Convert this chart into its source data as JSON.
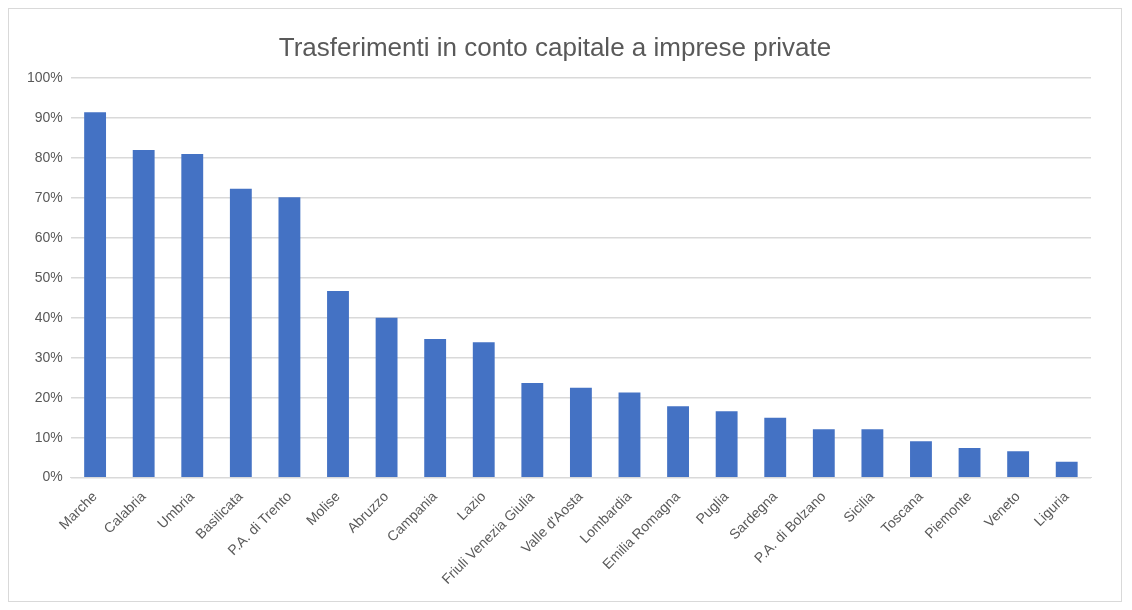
{
  "chart_data": {
    "type": "bar",
    "title": "Trasferimenti in conto capitale a imprese private",
    "categories": [
      "Marche",
      "Calabria",
      "Umbria",
      "Basilicata",
      "P.A. di Trento",
      "Molise",
      "Abruzzo",
      "Campania",
      "Lazio",
      "Friuli Venezia Giulia",
      "Valle d'Aosta",
      "Lombardia",
      "Emilia Romagna",
      "Puglia",
      "Sardegna",
      "P.A. di Bolzano",
      "Sicilia",
      "Toscana",
      "Piemonte",
      "Veneto",
      "Liguria"
    ],
    "values": [
      91.5,
      82,
      81,
      72.3,
      70.2,
      46.7,
      40,
      34.7,
      33.9,
      23.7,
      22.5,
      21.3,
      17.9,
      16.6,
      15,
      12.1,
      12.1,
      9.1,
      7.4,
      6.6,
      4
    ],
    "color": "#4472c4",
    "ylim": [
      0,
      100
    ],
    "yticks": [
      {
        "value": 0,
        "label": "0%"
      },
      {
        "value": 10,
        "label": "10%"
      },
      {
        "value": 20,
        "label": "20%"
      },
      {
        "value": 30,
        "label": "30%"
      },
      {
        "value": 40,
        "label": "40%"
      },
      {
        "value": 50,
        "label": "50%"
      },
      {
        "value": 60,
        "label": "60%"
      },
      {
        "value": 70,
        "label": "70%"
      },
      {
        "value": 80,
        "label": "80%"
      },
      {
        "value": 90,
        "label": "90%"
      },
      {
        "value": 100,
        "label": "100%"
      }
    ],
    "grid": "y",
    "legend": false
  }
}
